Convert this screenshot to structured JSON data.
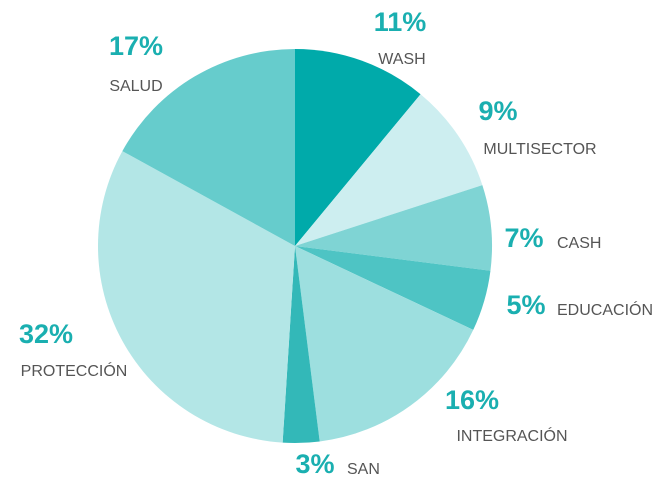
{
  "chart_data": {
    "type": "pie",
    "categories": [
      "WASH",
      "MULTISECTOR",
      "CASH",
      "EDUCACIÓN",
      "INTEGRACIÓN",
      "SAN",
      "PROTECCIÓN",
      "SALUD"
    ],
    "values": [
      11,
      9,
      7,
      5,
      16,
      3,
      32,
      17
    ],
    "value_labels": [
      "11%",
      "9%",
      "7%",
      "5%",
      "16%",
      "3%",
      "32%",
      "17%"
    ],
    "colors": [
      "#00aaaa",
      "#cdeef0",
      "#7fd4d4",
      "#4ec4c4",
      "#9ddfdf",
      "#33b8b8",
      "#b3e6e6",
      "#66cccc"
    ]
  }
}
